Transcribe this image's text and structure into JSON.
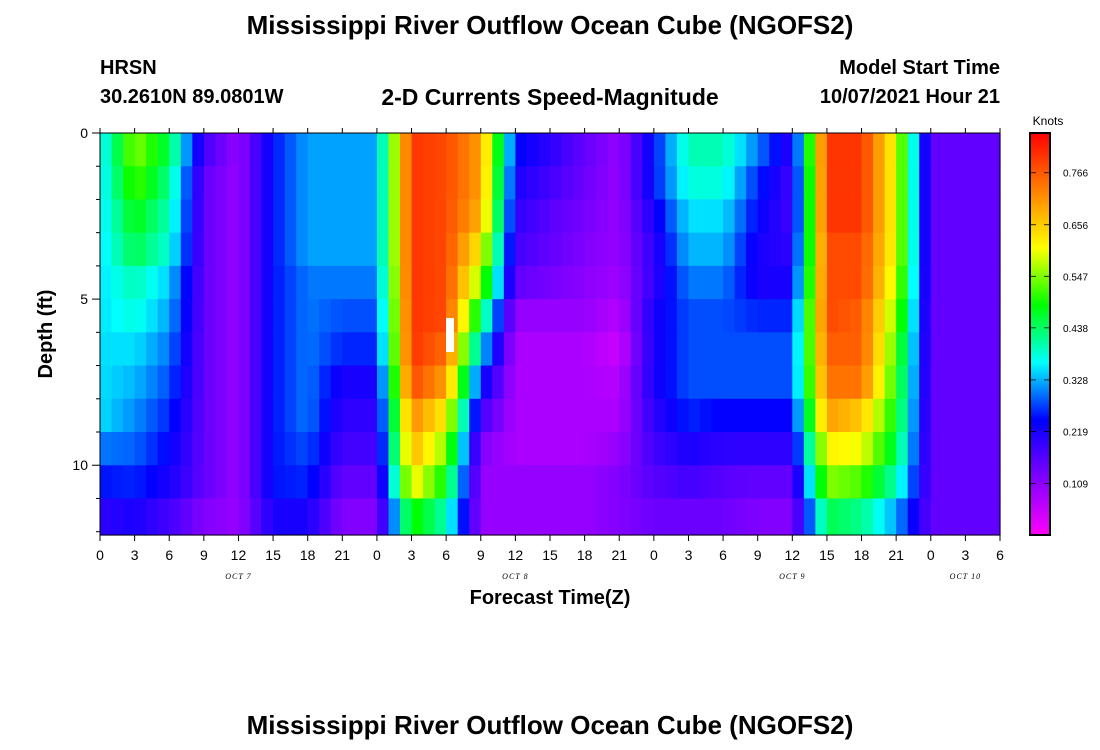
{
  "header": {
    "title": "Mississippi River Outflow Ocean Cube (NGOFS2)",
    "station": "HRSN",
    "coordinates": "30.2610N  89.0801W",
    "subtitle": "2-D Currents Speed-Magnitude",
    "model_start_label": "Model Start Time",
    "model_start_value": "10/07/2021 Hour 21"
  },
  "footer": {
    "title": "Mississippi River Outflow Ocean Cube (NGOFS2)"
  },
  "chart_data": {
    "type": "heatmap",
    "title": "2-D Currents Speed-Magnitude",
    "xlabel": "Forecast Time(Z)",
    "ylabel": "Depth (ft)",
    "x_tick_labels": [
      "0",
      "3",
      "6",
      "9",
      "12",
      "15",
      "18",
      "21",
      "0",
      "3",
      "6",
      "9",
      "12",
      "15",
      "18",
      "21",
      "0",
      "3",
      "6",
      "9",
      "12",
      "15",
      "18",
      "21",
      "0",
      "3",
      "6"
    ],
    "x_unit": "hours since 2021-10-07 00Z",
    "xlim": [
      0,
      78
    ],
    "date_labels": [
      {
        "label": "OCT 7",
        "hour": 12
      },
      {
        "label": "OCT 8",
        "hour": 36
      },
      {
        "label": "OCT 9",
        "hour": 60
      },
      {
        "label": "OCT 10",
        "hour": 75
      }
    ],
    "y_ticks": [
      0,
      5,
      10
    ],
    "ylim": [
      12.1,
      0
    ],
    "colorbar": {
      "label": "Knots",
      "ticks": [
        "0.766",
        "0.656",
        "0.547",
        "0.438",
        "0.328",
        "0.219",
        "0.109"
      ],
      "range": [
        0,
        0.85
      ],
      "colors": [
        "#ff00ff",
        "#8000ff",
        "#0000ff",
        "#00ffff",
        "#00ff00",
        "#ffff00",
        "#ff8000",
        "#ff0000"
      ]
    },
    "depth_levels_ft": [
      0.5,
      1.5,
      2.5,
      3.5,
      4.5,
      5.5,
      6.5,
      7.5,
      8.5,
      9.5,
      10.5,
      11.5
    ],
    "time_hours": [
      0,
      3,
      6,
      9,
      12,
      15,
      18,
      21,
      24,
      27,
      30,
      33,
      36,
      39,
      42,
      45,
      48,
      51,
      54,
      57,
      60,
      63,
      66,
      69,
      72,
      75,
      78
    ],
    "speed_knots": [
      [
        0.35,
        0.55,
        0.45,
        0.18,
        0.1,
        0.25,
        0.32,
        0.32,
        0.32,
        0.8,
        0.78,
        0.7,
        0.25,
        0.2,
        0.15,
        0.1,
        0.25,
        0.4,
        0.4,
        0.3,
        0.2,
        0.8,
        0.8,
        0.6,
        0.15,
        0.15,
        0.15
      ],
      [
        0.35,
        0.52,
        0.42,
        0.15,
        0.1,
        0.25,
        0.32,
        0.32,
        0.32,
        0.8,
        0.78,
        0.7,
        0.22,
        0.18,
        0.14,
        0.1,
        0.25,
        0.38,
        0.38,
        0.26,
        0.18,
        0.8,
        0.8,
        0.6,
        0.15,
        0.15,
        0.15
      ],
      [
        0.35,
        0.48,
        0.4,
        0.15,
        0.1,
        0.25,
        0.32,
        0.32,
        0.32,
        0.8,
        0.78,
        0.68,
        0.2,
        0.16,
        0.13,
        0.1,
        0.22,
        0.35,
        0.35,
        0.24,
        0.18,
        0.8,
        0.8,
        0.6,
        0.15,
        0.15,
        0.15
      ],
      [
        0.35,
        0.45,
        0.38,
        0.15,
        0.1,
        0.25,
        0.32,
        0.32,
        0.32,
        0.8,
        0.78,
        0.62,
        0.18,
        0.15,
        0.12,
        0.1,
        0.2,
        0.33,
        0.33,
        0.22,
        0.2,
        0.78,
        0.78,
        0.6,
        0.15,
        0.15,
        0.15
      ],
      [
        0.35,
        0.4,
        0.34,
        0.15,
        0.1,
        0.25,
        0.3,
        0.3,
        0.3,
        0.8,
        0.78,
        0.55,
        0.15,
        0.13,
        0.11,
        0.09,
        0.2,
        0.3,
        0.3,
        0.22,
        0.22,
        0.78,
        0.78,
        0.58,
        0.15,
        0.15,
        0.15
      ],
      [
        0.35,
        0.38,
        0.32,
        0.15,
        0.1,
        0.25,
        0.3,
        0.28,
        0.28,
        0.8,
        0.78,
        0.45,
        0.1,
        0.1,
        0.1,
        0.07,
        0.22,
        0.28,
        0.28,
        0.26,
        0.26,
        0.78,
        0.76,
        0.55,
        0.15,
        0.15,
        0.15
      ],
      [
        0.35,
        0.35,
        0.3,
        0.15,
        0.1,
        0.25,
        0.3,
        0.26,
        0.26,
        0.8,
        0.75,
        0.35,
        0.08,
        0.08,
        0.08,
        0.05,
        0.22,
        0.28,
        0.28,
        0.28,
        0.28,
        0.76,
        0.76,
        0.52,
        0.15,
        0.15,
        0.15
      ],
      [
        0.35,
        0.33,
        0.28,
        0.15,
        0.1,
        0.25,
        0.3,
        0.22,
        0.22,
        0.78,
        0.7,
        0.25,
        0.08,
        0.08,
        0.08,
        0.07,
        0.22,
        0.28,
        0.28,
        0.28,
        0.28,
        0.74,
        0.74,
        0.5,
        0.15,
        0.15,
        0.15
      ],
      [
        0.35,
        0.31,
        0.26,
        0.15,
        0.1,
        0.25,
        0.3,
        0.2,
        0.2,
        0.72,
        0.62,
        0.18,
        0.08,
        0.08,
        0.08,
        0.08,
        0.2,
        0.26,
        0.24,
        0.24,
        0.24,
        0.7,
        0.66,
        0.48,
        0.15,
        0.15,
        0.15
      ],
      [
        0.3,
        0.29,
        0.24,
        0.15,
        0.1,
        0.25,
        0.28,
        0.18,
        0.18,
        0.68,
        0.55,
        0.12,
        0.08,
        0.08,
        0.08,
        0.1,
        0.18,
        0.22,
        0.2,
        0.2,
        0.2,
        0.62,
        0.6,
        0.45,
        0.15,
        0.15,
        0.15
      ],
      [
        0.25,
        0.26,
        0.22,
        0.15,
        0.1,
        0.25,
        0.26,
        0.15,
        0.15,
        0.62,
        0.48,
        0.1,
        0.1,
        0.1,
        0.1,
        0.12,
        0.16,
        0.18,
        0.16,
        0.15,
        0.15,
        0.55,
        0.52,
        0.4,
        0.15,
        0.15,
        0.15
      ],
      [
        0.2,
        0.22,
        0.18,
        0.12,
        0.1,
        0.22,
        0.22,
        0.12,
        0.12,
        0.5,
        0.4,
        0.1,
        0.1,
        0.1,
        0.1,
        0.12,
        0.14,
        0.14,
        0.14,
        0.12,
        0.12,
        0.45,
        0.42,
        0.32,
        0.15,
        0.15,
        0.15
      ]
    ]
  }
}
